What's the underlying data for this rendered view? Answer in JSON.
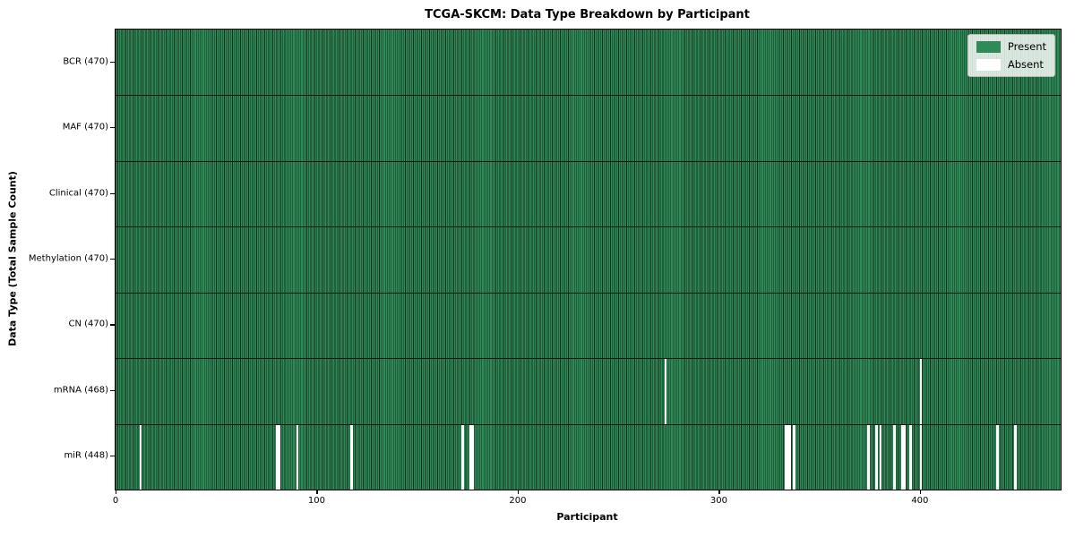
{
  "chart_data": {
    "type": "heatmap",
    "title": "TCGA-SKCM: Data Type Breakdown by Participant",
    "xlabel": "Participant",
    "ylabel": "Data Type (Total Sample Count)",
    "n_participants": 470,
    "x_ticks": [
      0,
      100,
      200,
      300,
      400
    ],
    "legend": [
      {
        "label": "Present",
        "color": "#2e8b57"
      },
      {
        "label": "Absent",
        "color": "#ffffff"
      }
    ],
    "colors": {
      "present_fill": "#2e8b57",
      "present_edge": "#17301f",
      "absent_fill": "#ffffff",
      "grid_line": "#0d1a12"
    },
    "rows": [
      {
        "label": "BCR",
        "count": 470,
        "tick_label": "BCR (470)",
        "absent_participants": []
      },
      {
        "label": "MAF",
        "count": 470,
        "tick_label": "MAF (470)",
        "absent_participants": []
      },
      {
        "label": "Clinical",
        "count": 470,
        "tick_label": "Clinical (470)",
        "absent_participants": []
      },
      {
        "label": "Methylation",
        "count": 470,
        "tick_label": "Methylation (470)",
        "absent_participants": []
      },
      {
        "label": "CN",
        "count": 470,
        "tick_label": "CN (470)",
        "absent_participants": []
      },
      {
        "label": "mRNA",
        "count": 468,
        "tick_label": "mRNA (468)",
        "absent_participants": [
          273,
          400
        ]
      },
      {
        "label": "miR",
        "count": 448,
        "tick_label": "miR (448)",
        "absent_participants": [
          12,
          80,
          81,
          90,
          117,
          172,
          176,
          177,
          333,
          334,
          335,
          337,
          374,
          378,
          380,
          387,
          391,
          392,
          395,
          400,
          438,
          447
        ]
      }
    ]
  }
}
